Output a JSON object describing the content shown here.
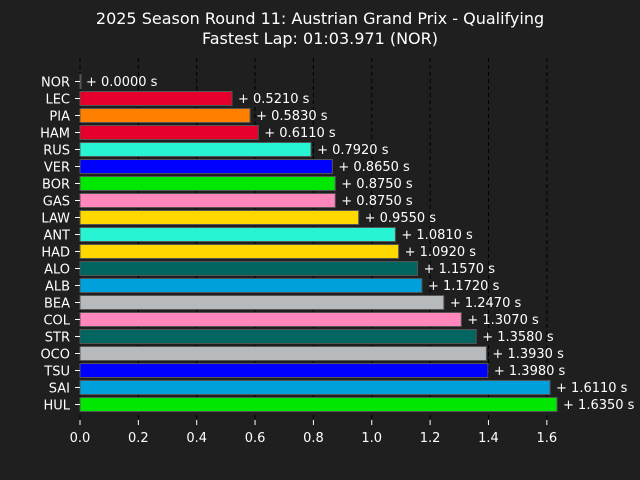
{
  "chart_data": {
    "type": "bar",
    "orientation": "horizontal",
    "title": "2025 Season Round 11: Austrian Grand Prix - Qualifying",
    "subtitle": "Fastest Lap: 01:03.971 (NOR)",
    "xlim": [
      0,
      1.7
    ],
    "x_ticks": [
      "0.0",
      "0.2",
      "0.4",
      "0.6",
      "0.8",
      "1.0",
      "1.2",
      "1.4",
      "1.6"
    ],
    "grid": "vertical dashed",
    "background": "#1f1f1f",
    "categories": [
      "NOR",
      "LEC",
      "PIA",
      "HAM",
      "RUS",
      "VER",
      "BOR",
      "GAS",
      "LAW",
      "ANT",
      "HAD",
      "ALO",
      "ALB",
      "BEA",
      "COL",
      "STR",
      "OCO",
      "TSU",
      "SAI",
      "HUL"
    ],
    "values": [
      0.0,
      0.521,
      0.583,
      0.611,
      0.792,
      0.865,
      0.875,
      0.875,
      0.955,
      1.081,
      1.092,
      1.157,
      1.172,
      1.247,
      1.307,
      1.358,
      1.393,
      1.398,
      1.611,
      1.635
    ],
    "labels": [
      "+ 0.0000 s",
      "+ 0.5210 s",
      "+ 0.5830 s",
      "+ 0.6110 s",
      "+ 0.7920 s",
      "+ 0.8650 s",
      "+ 0.8750 s",
      "+ 0.8750 s",
      "+ 0.9550 s",
      "+ 1.0810 s",
      "+ 1.0920 s",
      "+ 1.1570 s",
      "+ 1.1720 s",
      "+ 1.2470 s",
      "+ 1.3070 s",
      "+ 1.3580 s",
      "+ 1.3930 s",
      "+ 1.3980 s",
      "+ 1.6110 s",
      "+ 1.6350 s"
    ],
    "colors": [
      "#ff8000",
      "#e8002d",
      "#ff8000",
      "#e8002d",
      "#27f4d2",
      "#0000ff",
      "#00e701",
      "#ff87bc",
      "#ffd800",
      "#27f4d2",
      "#ffd800",
      "#00665f",
      "#00a0dd",
      "#b6babd",
      "#ff87bc",
      "#00665f",
      "#b6babd",
      "#0000ff",
      "#00a0dd",
      "#00e701"
    ]
  }
}
